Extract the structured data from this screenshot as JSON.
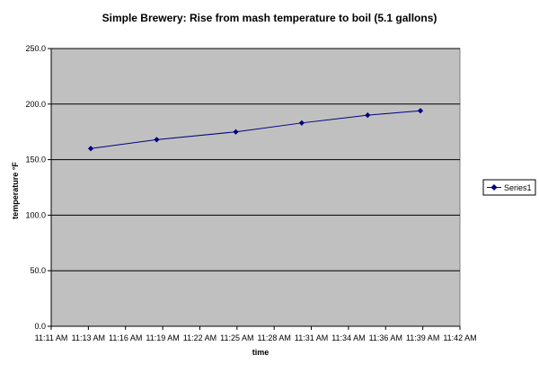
{
  "chart_data": {
    "type": "line",
    "title": "Simple Brewery: Rise from mash temperature to boil (5.1 gallons)",
    "xlabel": "time",
    "ylabel": "temperature °F",
    "x_ticks": [
      "11:11 AM",
      "11:13 AM",
      "11:16 AM",
      "11:19 AM",
      "11:22 AM",
      "11:25 AM",
      "11:28 AM",
      "11:31 AM",
      "11:34 AM",
      "11:36 AM",
      "11:39 AM",
      "11:42 AM"
    ],
    "y_ticks": [
      "0.0",
      "50.0",
      "100.0",
      "150.0",
      "200.0",
      "250.0"
    ],
    "xlim": [
      "11:11 AM",
      "11:42 AM"
    ],
    "ylim": [
      0,
      250
    ],
    "grid": "horizontal",
    "legend_position": "right",
    "series": [
      {
        "name": "Series1",
        "color": "#000080",
        "points": [
          {
            "x": "11:14 AM",
            "y": 160
          },
          {
            "x": "11:19 AM",
            "y": 168
          },
          {
            "x": "11:25 AM",
            "y": 175
          },
          {
            "x": "11:30 AM",
            "y": 183
          },
          {
            "x": "11:35 AM",
            "y": 190
          },
          {
            "x": "11:39 AM",
            "y": 194
          }
        ]
      }
    ],
    "plot_background": "#c0c0c0"
  }
}
